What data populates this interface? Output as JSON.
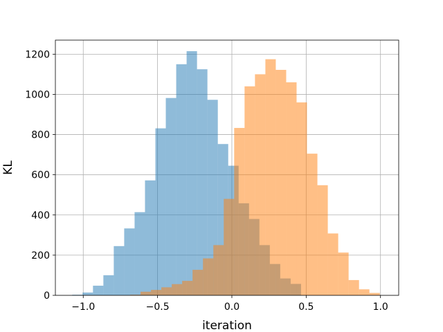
{
  "chart_data": {
    "type": "bar",
    "title": "",
    "xlabel": "iteration",
    "ylabel": "KL",
    "xlim": [
      -1.1875,
      1.1225
    ],
    "ylim": [
      0,
      1270
    ],
    "xticks": [
      -1.0,
      -0.5,
      0.0,
      0.5,
      1.0
    ],
    "xtick_labels": [
      "−1.0",
      "−0.5",
      "0.0",
      "0.5",
      "1.0"
    ],
    "yticks": [
      0,
      200,
      400,
      600,
      800,
      1000,
      1200
    ],
    "ytick_labels": [
      "0",
      "200",
      "400",
      "600",
      "800",
      "1000",
      "1200"
    ],
    "grid": true,
    "bar_alpha": 0.5,
    "series": [
      {
        "color": "#1f77b4",
        "bin_edges": [
          -1.0745,
          -1.0045,
          -0.9345,
          -0.8645,
          -0.7945,
          -0.7245,
          -0.6545,
          -0.5845,
          -0.5145,
          -0.4445,
          -0.3745,
          -0.3045,
          -0.2345,
          -0.1645,
          -0.0945,
          -0.0245,
          0.0455,
          0.1155,
          0.1855,
          0.2555,
          0.3255,
          0.3955,
          0.4655
        ],
        "counts": [
          3,
          14,
          48,
          100,
          245,
          333,
          414,
          572,
          831,
          982,
          1150,
          1215,
          1125,
          973,
          753,
          645,
          458,
          380,
          250,
          156,
          84,
          57
        ]
      },
      {
        "color": "#ff7f0e",
        "bin_edges": [
          -0.6845,
          -0.6145,
          -0.5445,
          -0.4745,
          -0.4045,
          -0.3345,
          -0.2645,
          -0.1945,
          -0.1245,
          -0.0545,
          0.0155,
          0.0855,
          0.1555,
          0.2255,
          0.2955,
          0.3655,
          0.4355,
          0.5055,
          0.5755,
          0.6455,
          0.7155,
          0.7855,
          0.8555,
          0.9255,
          0.9955
        ],
        "counts": [
          3,
          18,
          27,
          40,
          56,
          72,
          127,
          184,
          250,
          480,
          833,
          1040,
          1100,
          1175,
          1122,
          1060,
          960,
          705,
          548,
          308,
          213,
          76,
          30,
          12
        ]
      }
    ]
  }
}
